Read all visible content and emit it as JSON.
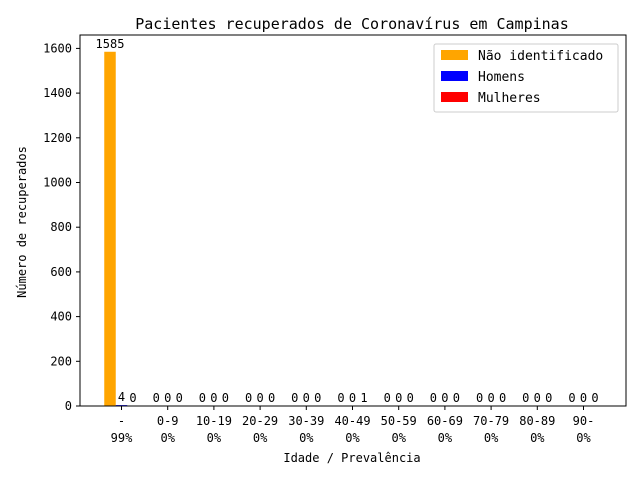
{
  "chart_data": {
    "type": "bar",
    "title": "Pacientes recuperados de Coronavírus em Campinas",
    "xlabel": "Idade / Prevalência",
    "ylabel": "Número de recuperados",
    "ylim": [
      0,
      1660
    ],
    "yticks": [
      0,
      200,
      400,
      600,
      800,
      1000,
      1200,
      1400,
      1600
    ],
    "grid": false,
    "legend_position": "top-right",
    "categories": [
      {
        "label": "-",
        "prevalence": "99%"
      },
      {
        "label": "0-9",
        "prevalence": "0%"
      },
      {
        "label": "10-19",
        "prevalence": "0%"
      },
      {
        "label": "20-29",
        "prevalence": "0%"
      },
      {
        "label": "30-39",
        "prevalence": "0%"
      },
      {
        "label": "40-49",
        "prevalence": "0%"
      },
      {
        "label": "50-59",
        "prevalence": "0%"
      },
      {
        "label": "60-69",
        "prevalence": "0%"
      },
      {
        "label": "70-79",
        "prevalence": "0%"
      },
      {
        "label": "80-89",
        "prevalence": "0%"
      },
      {
        "label": "90-",
        "prevalence": "0%"
      }
    ],
    "series": [
      {
        "name": "Não identificado",
        "color": "#ffa500",
        "values": [
          1585,
          0,
          0,
          0,
          0,
          0,
          0,
          0,
          0,
          0,
          0
        ]
      },
      {
        "name": "Homens",
        "color": "#0000ff",
        "values": [
          4,
          0,
          0,
          0,
          0,
          0,
          0,
          0,
          0,
          0,
          0
        ]
      },
      {
        "name": "Mulheres",
        "color": "#ff0000",
        "values": [
          0,
          0,
          0,
          0,
          0,
          1,
          0,
          0,
          0,
          0,
          0
        ]
      }
    ]
  }
}
